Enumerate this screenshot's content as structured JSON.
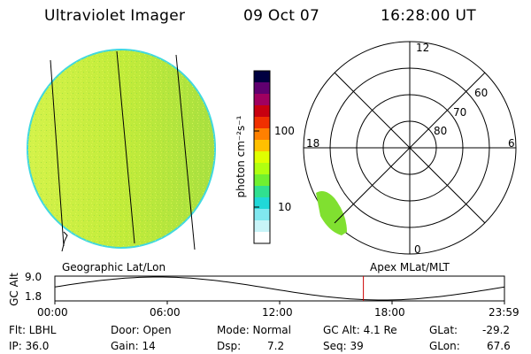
{
  "header": {
    "instrument": "Ultraviolet Imager",
    "date": "09 Oct 07",
    "time": "16:28:00 UT"
  },
  "left_panel": {
    "caption": "Geographic Lat/Lon"
  },
  "right_panel": {
    "caption": "Apex MLat/MLT",
    "mlt_labels": {
      "top": "12",
      "bottom": "0",
      "left": "18",
      "right": "6"
    },
    "lat_rings": [
      "60",
      "70",
      "80"
    ]
  },
  "colorbar": {
    "unit_label": "photon cm⁻²s⁻¹",
    "tick_labels": [
      "100",
      "10"
    ],
    "colors": [
      "#000040",
      "#600070",
      "#a00060",
      "#c80010",
      "#f03000",
      "#ff8000",
      "#ffc000",
      "#e0ff00",
      "#b0ff10",
      "#70f030",
      "#30e090",
      "#20d8d8",
      "#80e8f0",
      "#c8f4f8",
      "#ffffff"
    ]
  },
  "altitude_plot": {
    "ylabel": "GC Alt",
    "y_ticks": [
      "9.0",
      "1.8"
    ],
    "x_ticks": [
      "00:00",
      "06:00",
      "12:00",
      "18:00",
      "23:59"
    ],
    "current_time_hours": 16.47,
    "marker_color": "#cc0000"
  },
  "status": {
    "flt": "Flt: LBHL",
    "ip": "IP: 36.0",
    "door": "Door: Open",
    "gain": "Gain: 14",
    "mode": "Mode: Normal",
    "dsp": "Dsp:",
    "dsp_value": "7.2",
    "gc_alt": "GC Alt: 4.1 Re",
    "seq": "Seq: 39",
    "glat": "GLat:",
    "glat_value": "-29.2",
    "glon": "GLon:",
    "glon_value": "67.6"
  }
}
